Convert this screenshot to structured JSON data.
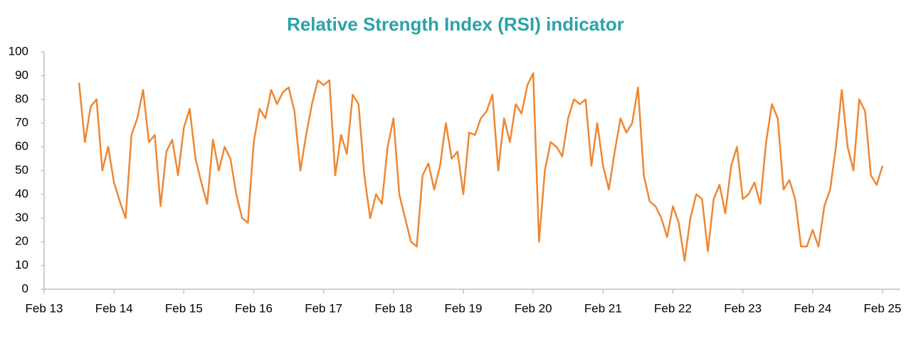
{
  "chart_data": {
    "type": "line",
    "title": "Relative Strength Index (RSI) indicator",
    "x": [
      "2013-08",
      "2013-09",
      "2013-10",
      "2013-11",
      "2013-12",
      "2014-01",
      "2014-02",
      "2014-03",
      "2014-04",
      "2014-05",
      "2014-06",
      "2014-07",
      "2014-08",
      "2014-09",
      "2014-10",
      "2014-11",
      "2014-12",
      "2015-01",
      "2015-02",
      "2015-03",
      "2015-04",
      "2015-05",
      "2015-06",
      "2015-07",
      "2015-08",
      "2015-09",
      "2015-10",
      "2015-11",
      "2015-12",
      "2016-01",
      "2016-02",
      "2016-03",
      "2016-04",
      "2016-05",
      "2016-06",
      "2016-07",
      "2016-08",
      "2016-09",
      "2016-10",
      "2016-11",
      "2016-12",
      "2017-01",
      "2017-02",
      "2017-03",
      "2017-04",
      "2017-05",
      "2017-06",
      "2017-07",
      "2017-08",
      "2017-09",
      "2017-10",
      "2017-11",
      "2017-12",
      "2018-01",
      "2018-02",
      "2018-03",
      "2018-04",
      "2018-05",
      "2018-06",
      "2018-07",
      "2018-08",
      "2018-09",
      "2018-10",
      "2018-11",
      "2018-12",
      "2019-01",
      "2019-02",
      "2019-03",
      "2019-04",
      "2019-05",
      "2019-06",
      "2019-07",
      "2019-08",
      "2019-09",
      "2019-10",
      "2019-11",
      "2019-12",
      "2020-01",
      "2020-02",
      "2020-03",
      "2020-04",
      "2020-05",
      "2020-06",
      "2020-07",
      "2020-08",
      "2020-09",
      "2020-10",
      "2020-11",
      "2020-12",
      "2021-01",
      "2021-02",
      "2021-03",
      "2021-04",
      "2021-05",
      "2021-06",
      "2021-07",
      "2021-08",
      "2021-09",
      "2021-10",
      "2021-11",
      "2021-12",
      "2022-01",
      "2022-02",
      "2022-03",
      "2022-04",
      "2022-05",
      "2022-06",
      "2022-07",
      "2022-08",
      "2022-09",
      "2022-10",
      "2022-11",
      "2022-12",
      "2023-01",
      "2023-02",
      "2023-03",
      "2023-04",
      "2023-05",
      "2023-06",
      "2023-07",
      "2023-08",
      "2023-09",
      "2023-10",
      "2023-11",
      "2023-12",
      "2024-01",
      "2024-02",
      "2024-03",
      "2024-04",
      "2024-05",
      "2024-06",
      "2024-07",
      "2024-08",
      "2024-09",
      "2024-10",
      "2024-11",
      "2024-12",
      "2025-01",
      "2025-02"
    ],
    "series": [
      {
        "name": "RSI",
        "color": "#ee8733",
        "values": [
          87,
          62,
          77,
          80,
          50,
          60,
          45,
          37,
          30,
          65,
          72,
          84,
          62,
          65,
          35,
          58,
          63,
          48,
          68,
          76,
          55,
          45,
          36,
          63,
          50,
          60,
          55,
          40,
          30,
          28,
          62,
          76,
          72,
          84,
          78,
          83,
          85,
          75,
          50,
          65,
          78,
          88,
          86,
          88,
          48,
          65,
          57,
          82,
          78,
          48,
          30,
          40,
          36,
          60,
          72,
          40,
          30,
          20,
          18,
          48,
          53,
          42,
          52,
          70,
          55,
          58,
          40,
          66,
          65,
          72,
          75,
          82,
          50,
          72,
          62,
          78,
          74,
          86,
          91,
          20,
          50,
          62,
          60,
          56,
          72,
          80,
          78,
          80,
          52,
          70,
          52,
          42,
          58,
          72,
          66,
          70,
          85,
          48,
          37,
          35,
          30,
          22,
          35,
          28,
          12,
          30,
          40,
          38,
          16,
          38,
          44,
          32,
          52,
          60,
          38,
          40,
          45,
          36,
          62,
          78,
          72,
          42,
          46,
          38,
          18,
          18,
          25,
          18,
          35,
          42,
          60,
          84,
          60,
          50,
          80,
          75,
          48,
          44,
          52
        ]
      }
    ],
    "xlim": [
      "2013-02",
      "2025-02"
    ],
    "xticks": [
      {
        "value": "2013-02",
        "label": "Feb 13"
      },
      {
        "value": "2014-02",
        "label": "Feb 14"
      },
      {
        "value": "2015-02",
        "label": "Feb 15"
      },
      {
        "value": "2016-02",
        "label": "Feb 16"
      },
      {
        "value": "2017-02",
        "label": "Feb 17"
      },
      {
        "value": "2018-02",
        "label": "Feb 18"
      },
      {
        "value": "2019-02",
        "label": "Feb 19"
      },
      {
        "value": "2020-02",
        "label": "Feb 20"
      },
      {
        "value": "2021-02",
        "label": "Feb 21"
      },
      {
        "value": "2022-02",
        "label": "Feb 22"
      },
      {
        "value": "2023-02",
        "label": "Feb 23"
      },
      {
        "value": "2024-02",
        "label": "Feb 24"
      },
      {
        "value": "2025-02",
        "label": "Feb 25"
      }
    ],
    "ylim": [
      0,
      100
    ],
    "yticks": [
      0,
      10,
      20,
      30,
      40,
      50,
      60,
      70,
      80,
      90,
      100
    ],
    "grid": false
  }
}
